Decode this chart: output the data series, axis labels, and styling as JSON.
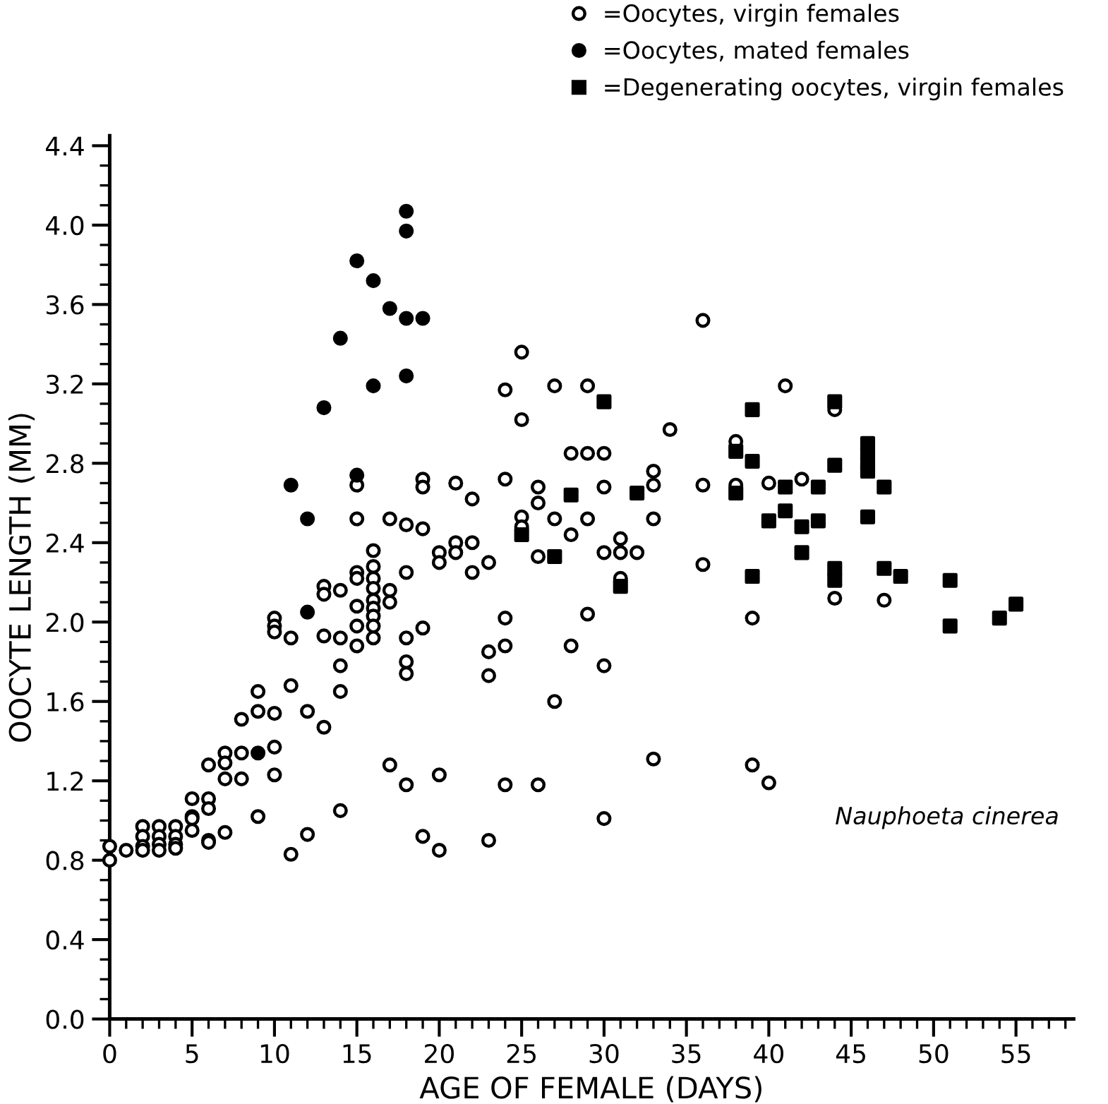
{
  "chart_data": {
    "type": "scatter",
    "xlabel": "AGE OF FEMALE (DAYS)",
    "ylabel": "OOCYTE LENGTH (MM)",
    "annotations": [
      "Nauphoeta cinerea"
    ],
    "legend": "top right",
    "grid": false,
    "xlim": [
      0,
      58.5
    ],
    "ylim": [
      0,
      4.45
    ],
    "xticks": [
      {
        "value": 0,
        "label": "0"
      },
      {
        "value": 1,
        "label": null
      },
      {
        "value": 2,
        "label": null
      },
      {
        "value": 3,
        "label": null
      },
      {
        "value": 4,
        "label": null
      },
      {
        "value": 5,
        "label": "5"
      },
      {
        "value": 6,
        "label": null
      },
      {
        "value": 7,
        "label": null
      },
      {
        "value": 8,
        "label": null
      },
      {
        "value": 9,
        "label": null
      },
      {
        "value": 10,
        "label": "10"
      },
      {
        "value": 11,
        "label": null
      },
      {
        "value": 12,
        "label": null
      },
      {
        "value": 13,
        "label": null
      },
      {
        "value": 14,
        "label": null
      },
      {
        "value": 15,
        "label": "15"
      },
      {
        "value": 16,
        "label": null
      },
      {
        "value": 17,
        "label": null
      },
      {
        "value": 18,
        "label": null
      },
      {
        "value": 19,
        "label": null
      },
      {
        "value": 20,
        "label": "20"
      },
      {
        "value": 21,
        "label": null
      },
      {
        "value": 22,
        "label": null
      },
      {
        "value": 23,
        "label": null
      },
      {
        "value": 24,
        "label": null
      },
      {
        "value": 25,
        "label": "25"
      },
      {
        "value": 26,
        "label": null
      },
      {
        "value": 27,
        "label": null
      },
      {
        "value": 28,
        "label": null
      },
      {
        "value": 29,
        "label": null
      },
      {
        "value": 30,
        "label": "30"
      },
      {
        "value": 31,
        "label": null
      },
      {
        "value": 32,
        "label": null
      },
      {
        "value": 33,
        "label": null
      },
      {
        "value": 34,
        "label": null
      },
      {
        "value": 35,
        "label": "35"
      },
      {
        "value": 36,
        "label": null
      },
      {
        "value": 37,
        "label": null
      },
      {
        "value": 38,
        "label": null
      },
      {
        "value": 39,
        "label": null
      },
      {
        "value": 40,
        "label": "40"
      },
      {
        "value": 41,
        "label": null
      },
      {
        "value": 42,
        "label": null
      },
      {
        "value": 43,
        "label": null
      },
      {
        "value": 44,
        "label": null
      },
      {
        "value": 45,
        "label": "45"
      },
      {
        "value": 46,
        "label": null
      },
      {
        "value": 47,
        "label": null
      },
      {
        "value": 48,
        "label": null
      },
      {
        "value": 49,
        "label": null
      },
      {
        "value": 50,
        "label": "50"
      },
      {
        "value": 51,
        "label": null
      },
      {
        "value": 52,
        "label": null
      },
      {
        "value": 53,
        "label": null
      },
      {
        "value": 54,
        "label": null
      },
      {
        "value": 55,
        "label": "55"
      },
      {
        "value": 56,
        "label": null
      },
      {
        "value": 57,
        "label": null
      },
      {
        "value": 58,
        "label": null
      }
    ],
    "yticks": [
      {
        "value": 0,
        "label": "0.0"
      },
      {
        "value": 0.1,
        "label": null
      },
      {
        "value": 0.2,
        "label": null
      },
      {
        "value": 0.3,
        "label": null
      },
      {
        "value": 0.4,
        "label": "0.4"
      },
      {
        "value": 0.5,
        "label": null
      },
      {
        "value": 0.6,
        "label": null
      },
      {
        "value": 0.7,
        "label": null
      },
      {
        "value": 0.8,
        "label": "0.8"
      },
      {
        "value": 0.9,
        "label": null
      },
      {
        "value": 1.0,
        "label": null
      },
      {
        "value": 1.1,
        "label": null
      },
      {
        "value": 1.2,
        "label": "1.2"
      },
      {
        "value": 1.3,
        "label": null
      },
      {
        "value": 1.4,
        "label": null
      },
      {
        "value": 1.5,
        "label": null
      },
      {
        "value": 1.6,
        "label": "1.6"
      },
      {
        "value": 1.7,
        "label": null
      },
      {
        "value": 1.8,
        "label": null
      },
      {
        "value": 1.9,
        "label": null
      },
      {
        "value": 2.0,
        "label": "2.0"
      },
      {
        "value": 2.1,
        "label": null
      },
      {
        "value": 2.2,
        "label": null
      },
      {
        "value": 2.3,
        "label": null
      },
      {
        "value": 2.4,
        "label": "2.4"
      },
      {
        "value": 2.5,
        "label": null
      },
      {
        "value": 2.6,
        "label": null
      },
      {
        "value": 2.7,
        "label": null
      },
      {
        "value": 2.8,
        "label": "2.8"
      },
      {
        "value": 2.9,
        "label": null
      },
      {
        "value": 3.0,
        "label": null
      },
      {
        "value": 3.1,
        "label": null
      },
      {
        "value": 3.2,
        "label": "3.2"
      },
      {
        "value": 3.3,
        "label": null
      },
      {
        "value": 3.4,
        "label": null
      },
      {
        "value": 3.5,
        "label": null
      },
      {
        "value": 3.6,
        "label": "3.6"
      },
      {
        "value": 3.7,
        "label": null
      },
      {
        "value": 3.8,
        "label": null
      },
      {
        "value": 3.9,
        "label": null
      },
      {
        "value": 4.0,
        "label": "4.0"
      },
      {
        "value": 4.1,
        "label": null
      },
      {
        "value": 4.2,
        "label": null
      },
      {
        "value": 4.3,
        "label": null
      },
      {
        "value": 4.4,
        "label": "4.4"
      }
    ],
    "series": [
      {
        "name": "=Oocytes, virgin females",
        "color": "#ffffff",
        "marker": "circle",
        "x": [
          0,
          0,
          1,
          2,
          2,
          2,
          2,
          3,
          3,
          3,
          3,
          4,
          4,
          4,
          4,
          5,
          5,
          5,
          5,
          6,
          6,
          6,
          6,
          6,
          7,
          7,
          7,
          7,
          8,
          8,
          8,
          9,
          9,
          9,
          10,
          10,
          10,
          10,
          10,
          10,
          11,
          11,
          11,
          12,
          12,
          13,
          13,
          13,
          13,
          14,
          14,
          14,
          14,
          14,
          15,
          15,
          15,
          15,
          15,
          15,
          15,
          16,
          16,
          16,
          16,
          16,
          16,
          16,
          16,
          16,
          17,
          17,
          17,
          17,
          18,
          18,
          18,
          18,
          18,
          18,
          19,
          19,
          19,
          19,
          19,
          20,
          20,
          20,
          20,
          21,
          21,
          21,
          22,
          22,
          22,
          23,
          23,
          23,
          23,
          24,
          24,
          24,
          24,
          24,
          25,
          25,
          25,
          25,
          26,
          26,
          26,
          26,
          27,
          27,
          27,
          28,
          28,
          28,
          29,
          29,
          29,
          29,
          30,
          30,
          30,
          30,
          30,
          31,
          31,
          31,
          32,
          33,
          33,
          33,
          33,
          34,
          36,
          36,
          36,
          38,
          38,
          39,
          39,
          40,
          40,
          41,
          42,
          44,
          44,
          47
        ],
        "values": [
          0.87,
          0.8,
          0.85,
          0.97,
          0.92,
          0.87,
          0.85,
          0.97,
          0.92,
          0.88,
          0.85,
          0.97,
          0.92,
          0.88,
          0.86,
          1.11,
          1.02,
          1.01,
          0.95,
          1.28,
          1.11,
          1.06,
          0.9,
          0.89,
          1.34,
          1.29,
          1.21,
          0.94,
          1.51,
          1.34,
          1.21,
          1.65,
          1.55,
          1.02,
          2.02,
          1.98,
          1.95,
          1.54,
          1.37,
          1.23,
          1.92,
          1.68,
          0.83,
          1.55,
          0.93,
          2.18,
          2.14,
          1.93,
          1.47,
          2.16,
          1.92,
          1.78,
          1.65,
          1.05,
          2.69,
          2.52,
          2.25,
          2.22,
          2.08,
          1.98,
          1.88,
          2.36,
          2.28,
          2.22,
          2.17,
          2.11,
          2.07,
          2.03,
          1.98,
          1.92,
          2.52,
          2.16,
          2.1,
          1.28,
          2.49,
          2.25,
          1.92,
          1.8,
          1.74,
          1.18,
          2.72,
          2.68,
          2.47,
          1.97,
          0.92,
          2.35,
          2.3,
          1.23,
          0.85,
          2.7,
          2.4,
          2.35,
          2.4,
          2.62,
          2.25,
          2.3,
          1.85,
          1.73,
          0.9,
          3.17,
          2.72,
          2.02,
          1.88,
          1.18,
          3.36,
          3.02,
          2.53,
          2.48,
          2.68,
          2.6,
          2.33,
          1.18,
          3.19,
          2.52,
          1.6,
          2.85,
          2.44,
          1.88,
          3.19,
          2.85,
          2.52,
          2.04,
          2.85,
          2.68,
          2.35,
          1.78,
          1.01,
          2.42,
          2.35,
          2.22,
          2.35,
          2.76,
          2.69,
          2.52,
          1.31,
          2.97,
          3.52,
          2.69,
          2.29,
          2.91,
          2.69,
          2.02,
          1.28,
          2.7,
          1.19,
          3.19,
          2.72,
          3.07,
          2.12,
          2.11
        ]
      },
      {
        "name": "=Oocytes, mated females",
        "color": "#000000",
        "marker": "circle",
        "x": [
          9,
          11,
          12,
          12,
          13,
          14,
          15,
          15,
          16,
          16,
          17,
          18,
          18,
          18,
          18,
          19
        ],
        "values": [
          1.34,
          2.69,
          2.52,
          2.05,
          3.08,
          3.43,
          3.82,
          2.74,
          3.72,
          3.19,
          3.58,
          4.07,
          3.97,
          3.53,
          3.24,
          3.53
        ]
      },
      {
        "name": "=Degenerating oocytes, virgin females",
        "color": "#000000",
        "marker": "square",
        "x": [
          25,
          27,
          28,
          30,
          31,
          32,
          38,
          38,
          39,
          39,
          39,
          40,
          41,
          41,
          42,
          42,
          43,
          43,
          44,
          44,
          44,
          44,
          46,
          46,
          46,
          46,
          46,
          47,
          47,
          48,
          51,
          51,
          54,
          55
        ],
        "values": [
          2.44,
          2.33,
          2.64,
          3.11,
          2.18,
          2.65,
          2.86,
          2.65,
          3.07,
          2.81,
          2.23,
          2.51,
          2.68,
          2.56,
          2.35,
          2.48,
          2.68,
          2.51,
          3.11,
          2.79,
          2.27,
          2.21,
          2.9,
          2.85,
          2.8,
          2.76,
          2.53,
          2.68,
          2.27,
          2.23,
          2.21,
          1.98,
          2.02,
          2.09
        ]
      }
    ]
  }
}
